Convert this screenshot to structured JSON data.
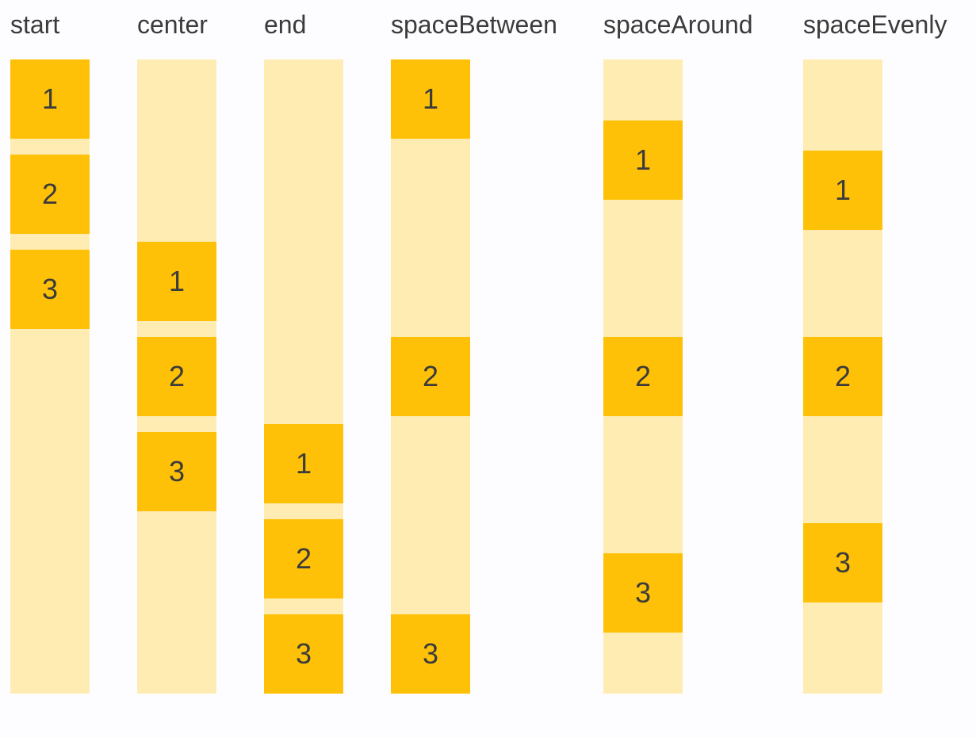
{
  "colors": {
    "background": "#FDFDFF",
    "track": "#FFECB3",
    "box": "#FFC107",
    "text": "#3B3B3B"
  },
  "columns": [
    {
      "label": "start",
      "justify": "flex-start",
      "items": [
        "1",
        "2",
        "3"
      ]
    },
    {
      "label": "center",
      "justify": "center",
      "items": [
        "1",
        "2",
        "3"
      ]
    },
    {
      "label": "end",
      "justify": "flex-end",
      "items": [
        "1",
        "2",
        "3"
      ]
    },
    {
      "label": "spaceBetween",
      "justify": "space-between",
      "items": [
        "1",
        "2",
        "3"
      ]
    },
    {
      "label": "spaceAround",
      "justify": "space-around",
      "items": [
        "1",
        "2",
        "3"
      ]
    },
    {
      "label": "spaceEvenly",
      "justify": "space-evenly",
      "items": [
        "1",
        "2",
        "3"
      ]
    }
  ]
}
